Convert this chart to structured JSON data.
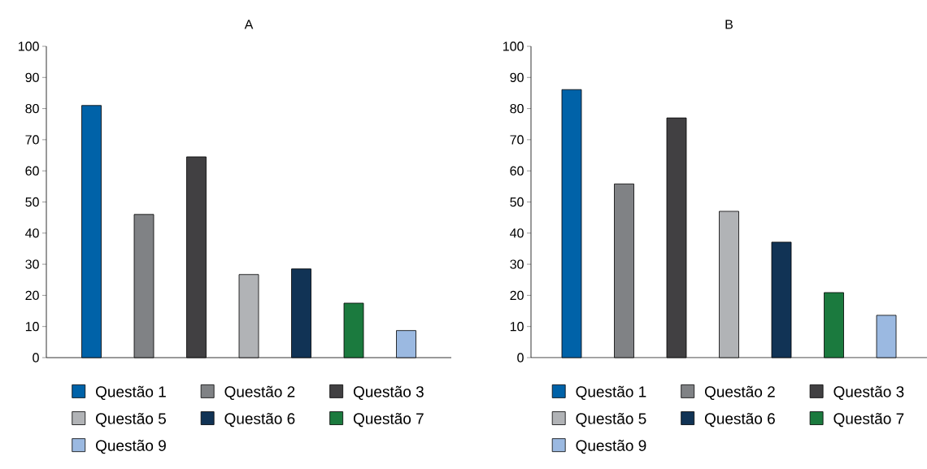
{
  "chart_data": [
    {
      "type": "bar",
      "title": "A",
      "categories": [
        null
      ],
      "ylim": [
        0,
        100
      ],
      "yticks": [
        0,
        10,
        20,
        30,
        40,
        50,
        60,
        70,
        80,
        90,
        100
      ],
      "legend": "bottom",
      "series": [
        {
          "name": "Questão 1",
          "color": "#0062a8",
          "values": [
            81
          ]
        },
        {
          "name": "Questão 2",
          "color": "#808285",
          "values": [
            46
          ]
        },
        {
          "name": "Questão 3",
          "color": "#414042",
          "values": [
            64.5
          ]
        },
        {
          "name": "Questão 5",
          "color": "#b1b3b6",
          "values": [
            26.7
          ]
        },
        {
          "name": "Questão 6",
          "color": "#113355",
          "values": [
            28.5
          ]
        },
        {
          "name": "Questão 7",
          "color": "#1b7a3e",
          "values": [
            17.5
          ]
        },
        {
          "name": "Questão 9",
          "color": "#9bb9e1",
          "values": [
            8.7
          ]
        }
      ]
    },
    {
      "type": "bar",
      "title": "B",
      "categories": [
        null
      ],
      "ylim": [
        0,
        100
      ],
      "yticks": [
        0,
        10,
        20,
        30,
        40,
        50,
        60,
        70,
        80,
        90,
        100
      ],
      "legend": "bottom",
      "series": [
        {
          "name": "Questão 1",
          "color": "#0062a8",
          "values": [
            86.1
          ]
        },
        {
          "name": "Questão 2",
          "color": "#808285",
          "values": [
            55.8
          ]
        },
        {
          "name": "Questão 3",
          "color": "#414042",
          "values": [
            77
          ]
        },
        {
          "name": "Questão 5",
          "color": "#b1b3b6",
          "values": [
            47
          ]
        },
        {
          "name": "Questão 6",
          "color": "#113355",
          "values": [
            37.1
          ]
        },
        {
          "name": "Questão 7",
          "color": "#1b7a3e",
          "values": [
            20.9
          ]
        },
        {
          "name": "Questão 9",
          "color": "#9bb9e1",
          "values": [
            13.6
          ]
        }
      ]
    }
  ]
}
